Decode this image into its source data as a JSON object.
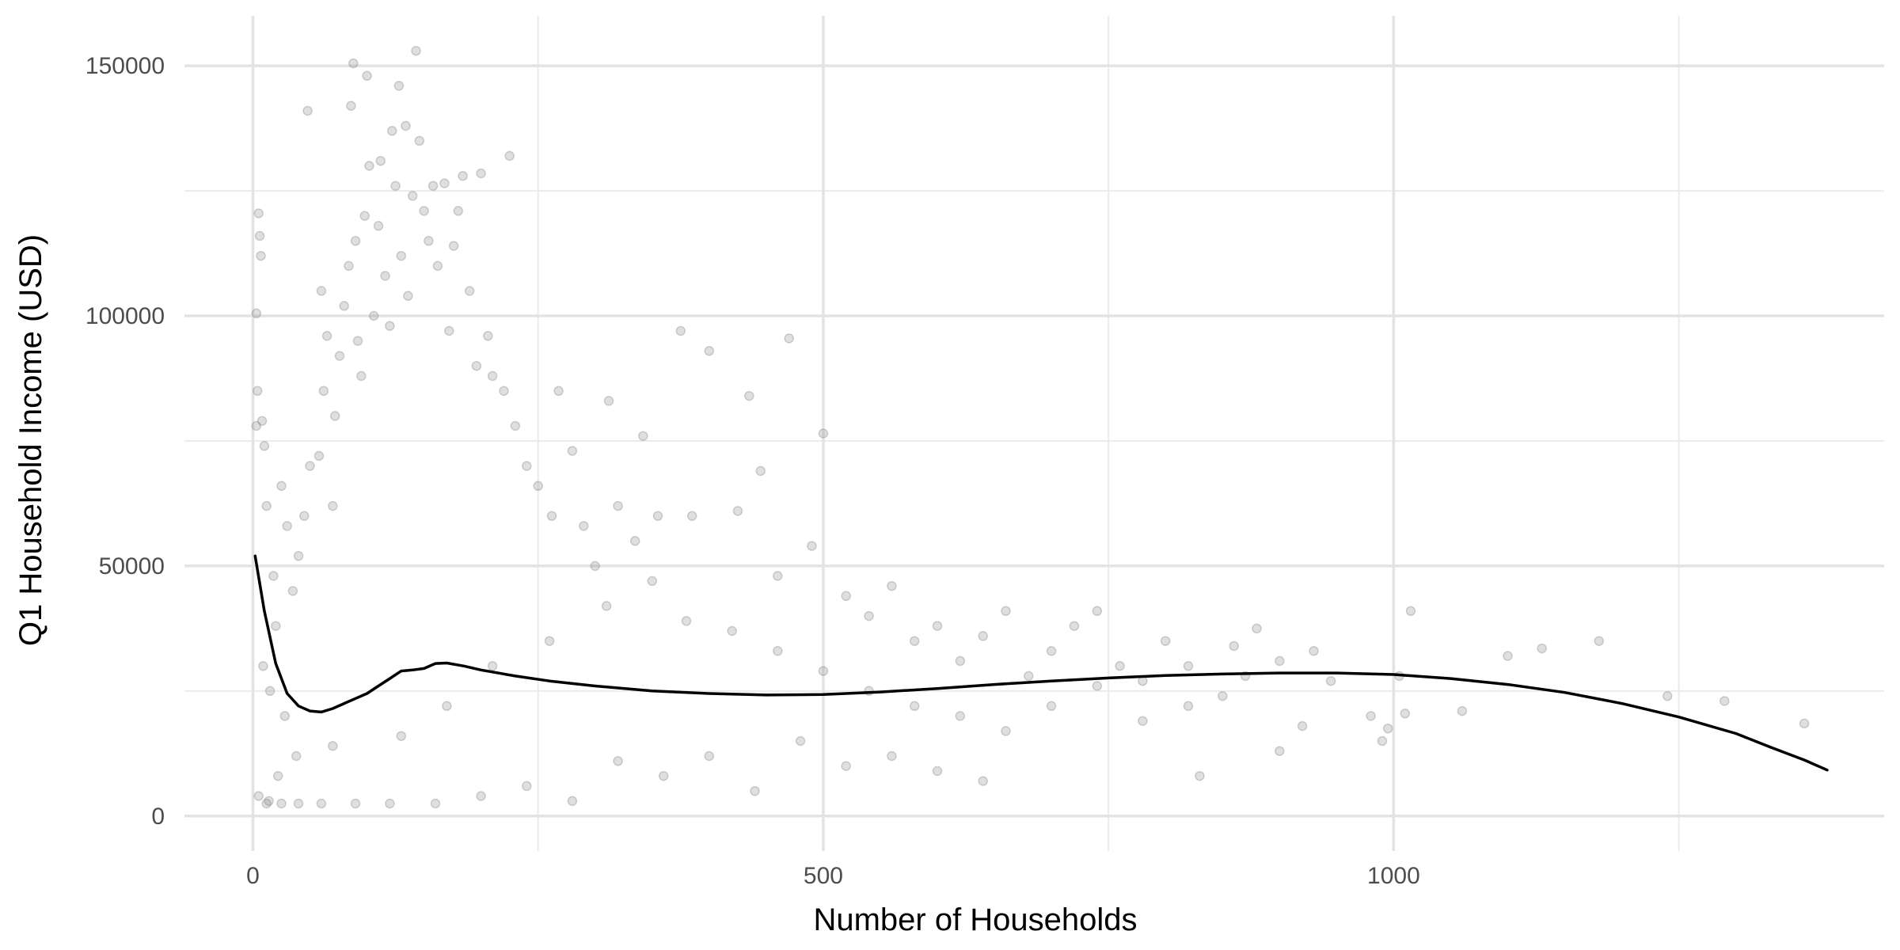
{
  "chart_data": {
    "type": "scatter",
    "title": "",
    "xlabel": "Number of Households",
    "ylabel": "Q1 Household Income (USD)",
    "xlim": [
      -60,
      1430
    ],
    "ylim": [
      -7000,
      160000
    ],
    "x_ticks": [
      0,
      500,
      1000
    ],
    "x_tick_labels": [
      "0",
      "500",
      "1000"
    ],
    "x_minor_gridlines": [
      250,
      750,
      1250
    ],
    "y_ticks": [
      0,
      50000,
      100000,
      150000
    ],
    "y_tick_labels": [
      "0",
      "50000",
      "100000",
      "150000"
    ],
    "y_minor_gridlines": [
      25000,
      75000,
      125000
    ],
    "grid": true,
    "legend": "none",
    "point_color": "#808080",
    "point_alpha": 0.25,
    "line_color": "#000000",
    "series": [
      {
        "type": "scatter",
        "points": [
          [
            3,
            78000
          ],
          [
            5,
            120500
          ],
          [
            6,
            116000
          ],
          [
            7,
            112000
          ],
          [
            3,
            100500
          ],
          [
            4,
            85000
          ],
          [
            8,
            79000
          ],
          [
            10,
            74000
          ],
          [
            12,
            62000
          ],
          [
            18,
            48000
          ],
          [
            20,
            38000
          ],
          [
            15,
            25000
          ],
          [
            9,
            30000
          ],
          [
            25,
            66000
          ],
          [
            30,
            58000
          ],
          [
            35,
            45000
          ],
          [
            40,
            52000
          ],
          [
            45,
            60000
          ],
          [
            50,
            70000
          ],
          [
            38,
            12000
          ],
          [
            28,
            20000
          ],
          [
            22,
            8000
          ],
          [
            14,
            3000
          ],
          [
            48,
            141000
          ],
          [
            60,
            105000
          ],
          [
            62,
            85000
          ],
          [
            65,
            96000
          ],
          [
            58,
            72000
          ],
          [
            70,
            62000
          ],
          [
            72,
            80000
          ],
          [
            76,
            92000
          ],
          [
            80,
            102000
          ],
          [
            84,
            110000
          ],
          [
            86,
            142000
          ],
          [
            88,
            150500
          ],
          [
            90,
            115000
          ],
          [
            92,
            95000
          ],
          [
            95,
            88000
          ],
          [
            98,
            120000
          ],
          [
            100,
            148000
          ],
          [
            102,
            130000
          ],
          [
            106,
            100000
          ],
          [
            110,
            118000
          ],
          [
            112,
            131000
          ],
          [
            116,
            108000
          ],
          [
            120,
            98000
          ],
          [
            122,
            137000
          ],
          [
            125,
            126000
          ],
          [
            128,
            146000
          ],
          [
            130,
            112000
          ],
          [
            134,
            138000
          ],
          [
            136,
            104000
          ],
          [
            140,
            124000
          ],
          [
            143,
            153000
          ],
          [
            146,
            135000
          ],
          [
            150,
            121000
          ],
          [
            154,
            115000
          ],
          [
            158,
            126000
          ],
          [
            162,
            110000
          ],
          [
            168,
            126500
          ],
          [
            172,
            97000
          ],
          [
            176,
            114000
          ],
          [
            180,
            121000
          ],
          [
            184,
            128000
          ],
          [
            190,
            105000
          ],
          [
            196,
            90000
          ],
          [
            200,
            128500
          ],
          [
            206,
            96000
          ],
          [
            210,
            88000
          ],
          [
            220,
            85000
          ],
          [
            225,
            132000
          ],
          [
            230,
            78000
          ],
          [
            240,
            70000
          ],
          [
            250,
            66000
          ],
          [
            262,
            60000
          ],
          [
            268,
            85000
          ],
          [
            280,
            73000
          ],
          [
            290,
            58000
          ],
          [
            300,
            50000
          ],
          [
            312,
            83000
          ],
          [
            320,
            62000
          ],
          [
            335,
            55000
          ],
          [
            342,
            76000
          ],
          [
            355,
            60000
          ],
          [
            375,
            97000
          ],
          [
            385,
            60000
          ],
          [
            400,
            93000
          ],
          [
            425,
            61000
          ],
          [
            435,
            84000
          ],
          [
            445,
            69000
          ],
          [
            460,
            48000
          ],
          [
            470,
            95500
          ],
          [
            490,
            54000
          ],
          [
            500,
            76500
          ],
          [
            520,
            44000
          ],
          [
            540,
            40000
          ],
          [
            560,
            46000
          ],
          [
            580,
            35000
          ],
          [
            600,
            38000
          ],
          [
            620,
            31000
          ],
          [
            640,
            36000
          ],
          [
            660,
            41000
          ],
          [
            680,
            28000
          ],
          [
            700,
            33000
          ],
          [
            720,
            38000
          ],
          [
            740,
            41000
          ],
          [
            760,
            30000
          ],
          [
            780,
            27000
          ],
          [
            800,
            35000
          ],
          [
            820,
            30000
          ],
          [
            850,
            24000
          ],
          [
            860,
            34000
          ],
          [
            880,
            37500
          ],
          [
            900,
            31000
          ],
          [
            930,
            33000
          ],
          [
            945,
            27000
          ],
          [
            980,
            20000
          ],
          [
            995,
            17500
          ],
          [
            1005,
            28000
          ],
          [
            1015,
            41000
          ],
          [
            1060,
            21000
          ],
          [
            1100,
            32000
          ],
          [
            1130,
            33500
          ],
          [
            1180,
            35000
          ],
          [
            1240,
            24000
          ],
          [
            1290,
            23000
          ],
          [
            1360,
            18500
          ],
          [
            830,
            8000
          ],
          [
            900,
            13000
          ],
          [
            990,
            15000
          ],
          [
            1010,
            20500
          ],
          [
            640,
            7000
          ],
          [
            600,
            9000
          ],
          [
            560,
            12000
          ],
          [
            520,
            10000
          ],
          [
            480,
            15000
          ],
          [
            440,
            5000
          ],
          [
            400,
            12000
          ],
          [
            360,
            8000
          ],
          [
            320,
            11000
          ],
          [
            280,
            3000
          ],
          [
            240,
            6000
          ],
          [
            200,
            4000
          ],
          [
            160,
            2500
          ],
          [
            120,
            2500
          ],
          [
            90,
            2500
          ],
          [
            60,
            2500
          ],
          [
            40,
            2500
          ],
          [
            25,
            2500
          ],
          [
            12,
            2500
          ],
          [
            5,
            4000
          ],
          [
            70,
            14000
          ],
          [
            130,
            16000
          ],
          [
            170,
            22000
          ],
          [
            210,
            30000
          ],
          [
            260,
            35000
          ],
          [
            310,
            42000
          ],
          [
            350,
            47000
          ],
          [
            380,
            39000
          ],
          [
            420,
            37000
          ],
          [
            460,
            33000
          ],
          [
            500,
            29000
          ],
          [
            540,
            25000
          ],
          [
            580,
            22000
          ],
          [
            620,
            20000
          ],
          [
            660,
            17000
          ],
          [
            700,
            22000
          ],
          [
            740,
            26000
          ],
          [
            780,
            19000
          ],
          [
            820,
            22000
          ],
          [
            870,
            28000
          ],
          [
            920,
            18000
          ]
        ]
      },
      {
        "type": "line",
        "points": [
          [
            2,
            52000
          ],
          [
            10,
            41000
          ],
          [
            20,
            30500
          ],
          [
            30,
            24500
          ],
          [
            40,
            22000
          ],
          [
            50,
            21000
          ],
          [
            60,
            20800
          ],
          [
            70,
            21500
          ],
          [
            80,
            22500
          ],
          [
            90,
            23500
          ],
          [
            100,
            24500
          ],
          [
            110,
            26000
          ],
          [
            120,
            27500
          ],
          [
            130,
            29000
          ],
          [
            140,
            29200
          ],
          [
            150,
            29500
          ],
          [
            160,
            30500
          ],
          [
            170,
            30600
          ],
          [
            185,
            30000
          ],
          [
            200,
            29200
          ],
          [
            230,
            28000
          ],
          [
            260,
            27000
          ],
          [
            300,
            26000
          ],
          [
            350,
            25000
          ],
          [
            400,
            24500
          ],
          [
            450,
            24200
          ],
          [
            500,
            24300
          ],
          [
            550,
            24800
          ],
          [
            600,
            25500
          ],
          [
            650,
            26300
          ],
          [
            700,
            27000
          ],
          [
            750,
            27600
          ],
          [
            800,
            28100
          ],
          [
            850,
            28400
          ],
          [
            900,
            28600
          ],
          [
            950,
            28600
          ],
          [
            1000,
            28300
          ],
          [
            1050,
            27500
          ],
          [
            1100,
            26300
          ],
          [
            1150,
            24700
          ],
          [
            1200,
            22500
          ],
          [
            1250,
            19800
          ],
          [
            1300,
            16500
          ],
          [
            1330,
            13800
          ],
          [
            1360,
            11200
          ],
          [
            1380,
            9200
          ]
        ]
      }
    ]
  }
}
